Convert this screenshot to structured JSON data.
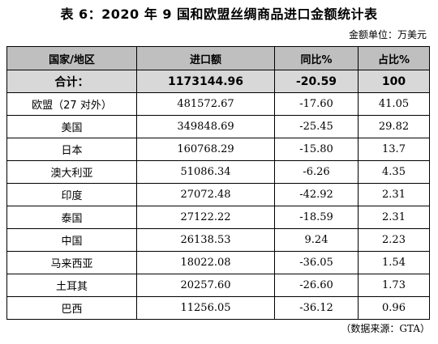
{
  "title": "表 6：2020 年 9 国和欧盟丝绸商品进口金额统计表",
  "unit_note": "金额单位：万美元",
  "headers": [
    "国家/地区",
    "进口额",
    "同比%",
    "占比%"
  ],
  "total": {
    "name": "合计：",
    "import": "1173144.96",
    "yoy": "-20.59",
    "share": "100"
  },
  "rows": [
    {
      "name": "欧盟（27 对外）",
      "import": "481572.67",
      "yoy": "-17.60",
      "share": "41.05"
    },
    {
      "name": "美国",
      "import": "349848.69",
      "yoy": "-25.45",
      "share": "29.82"
    },
    {
      "name": "日本",
      "import": "160768.29",
      "yoy": "-15.80",
      "share": "13.7"
    },
    {
      "name": "澳大利亚",
      "import": "51086.34",
      "yoy": "-6.26",
      "share": "4.35"
    },
    {
      "name": "印度",
      "import": "27072.48",
      "yoy": "-42.92",
      "share": "2.31"
    },
    {
      "name": "泰国",
      "import": "27122.22",
      "yoy": "-18.59",
      "share": "2.31"
    },
    {
      "name": "中国",
      "import": "26138.53",
      "yoy": "9.24",
      "share": "2.23"
    },
    {
      "name": "马来西亚",
      "import": "18022.08",
      "yoy": "-36.05",
      "share": "1.54"
    },
    {
      "name": "土耳其",
      "import": "20257.60",
      "yoy": "-26.60",
      "share": "1.73"
    },
    {
      "name": "巴西",
      "import": "11256.05",
      "yoy": "-36.12",
      "share": "0.96"
    }
  ],
  "source_note": "（数据来源：GTA）"
}
